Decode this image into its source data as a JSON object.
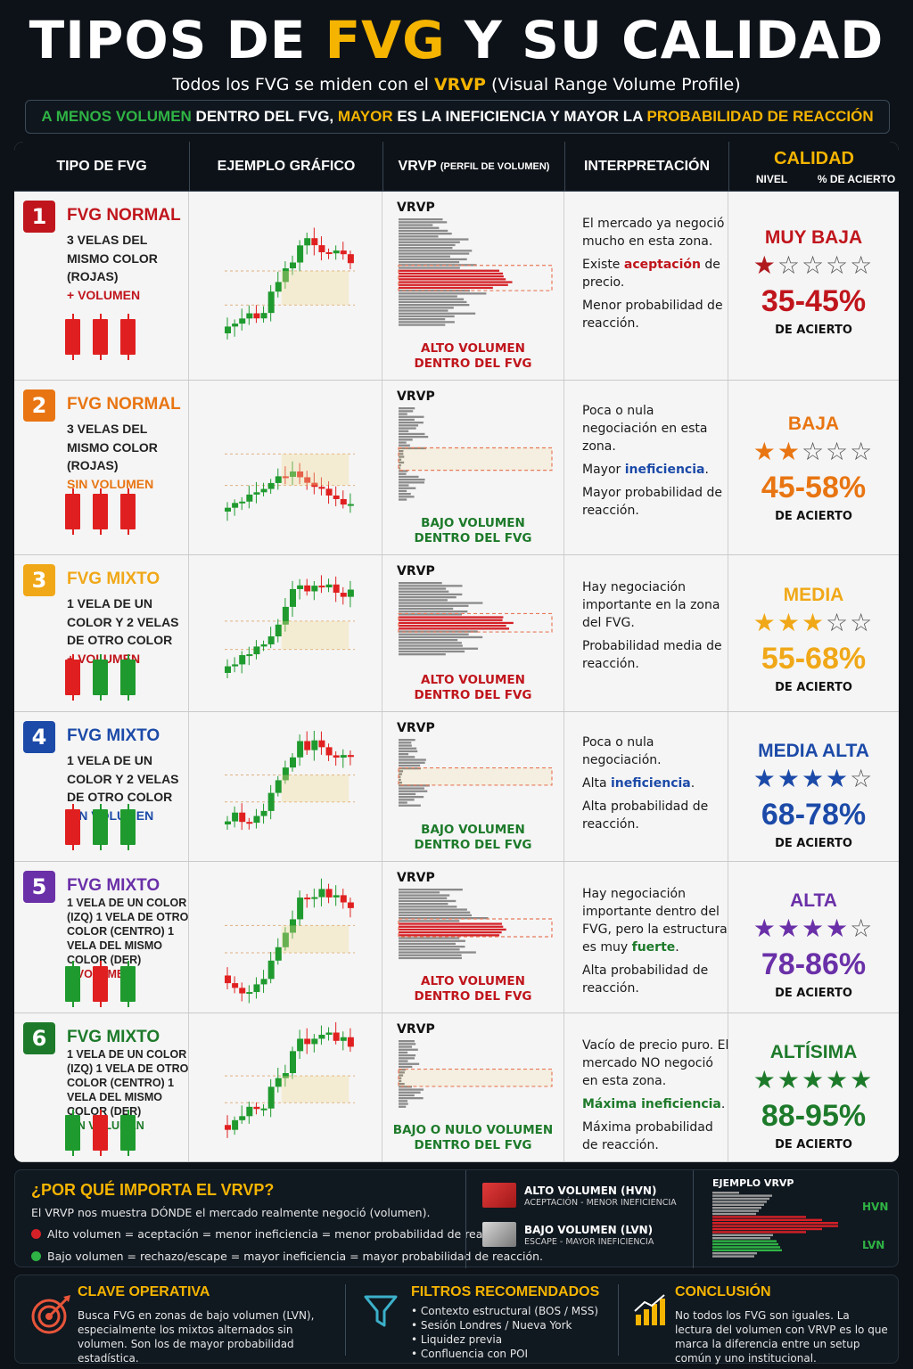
{
  "header": {
    "title_pre": "TIPOS DE ",
    "title_hl": "FVG",
    "title_post": " Y SU CALIDAD",
    "subtitle_pre": "Todos los FVG se miden con el ",
    "subtitle_hl": "VRVP",
    "subtitle_post": " (Visual Range Volume Profile)",
    "banner_1": "A MENOS VOLUMEN",
    "banner_2": " DENTRO DEL FVG, ",
    "banner_3": "MAYOR",
    "banner_4": " ES LA INEFICIENCIA Y MAYOR LA ",
    "banner_5": "PROBABILIDAD DE REACCIÓN"
  },
  "columns": {
    "type": "TIPO DE FVG",
    "example": "EJEMPLO GRÁFICO",
    "vrvp": "VRVP",
    "vrvp_small": "(PERFIL DE VOLUMEN)",
    "interp": "INTERPRETACIÓN",
    "quality": "CALIDAD",
    "level": "NIVEL",
    "pct": "% DE ACIERTO"
  },
  "vrvp_label": "VRVP",
  "accuracy_label": "DE ACIERTO",
  "rows": [
    {
      "num": "1",
      "color": "#c0151c",
      "name": "FVG NORMAL",
      "desc": "3 VELAS DEL MISMO COLOR (ROJAS)",
      "note": "+ VOLUMEN",
      "note_color": "#c0151c",
      "candles": [
        "red",
        "red",
        "red"
      ],
      "vol1": "ALTO VOLUMEN",
      "vol2": "DENTRO DEL FVG",
      "vol_color": "#c0151c",
      "high": true,
      "interp": [
        "El mercado ya negoció mucho en esta zona.",
        "Existe ",
        "aceptación",
        " de precio.",
        "Menor probabilidad de reacción."
      ],
      "level": "MUY BAJA",
      "stars": 1,
      "pct": "35-45%",
      "qcolor": "#c0151c",
      "star_color": "#b01a1f"
    },
    {
      "num": "2",
      "color": "#e87512",
      "name": "FVG NORMAL",
      "desc": "3 VELAS DEL MISMO COLOR (ROJAS)",
      "note": "SIN VOLUMEN",
      "note_color": "#e87512",
      "candles": [
        "red",
        "red",
        "red"
      ],
      "vol1": "BAJO VOLUMEN",
      "vol2": "DENTRO DEL FVG",
      "vol_color": "#1d7a2a",
      "high": false,
      "interp": [
        "Poca o nula negociación en esta zona.",
        "Mayor ",
        "ineficiencia",
        ".",
        "Mayor probabilidad de reacción."
      ],
      "level": "BAJA",
      "stars": 2,
      "pct": "45-58%",
      "qcolor": "#e87512",
      "star_color": "#e87512"
    },
    {
      "num": "3",
      "color": "#f0a818",
      "name": "FVG MIXTO",
      "desc": "1 VELA DE UN COLOR Y 2 VELAS DE OTRO COLOR",
      "note": "+ VOLUMEN",
      "note_color": "#c0151c",
      "candles": [
        "red",
        "green",
        "green"
      ],
      "vol1": "ALTO VOLUMEN",
      "vol2": "DENTRO DEL FVG",
      "vol_color": "#c0151c",
      "high": true,
      "interp": [
        "Hay negociación importante en la zona del FVG.",
        "",
        "",
        "",
        "Probabilidad media de reacción."
      ],
      "level": "MEDIA",
      "stars": 3,
      "pct": "55-68%",
      "qcolor": "#f0a818",
      "star_color": "#f0a818"
    },
    {
      "num": "4",
      "color": "#1c4aa8",
      "name": "FVG MIXTO",
      "desc": "1 VELA DE UN COLOR Y 2 VELAS DE OTRO COLOR",
      "note": "SIN VOLUMEN",
      "note_color": "#1c4aa8",
      "candles": [
        "red",
        "green",
        "green"
      ],
      "vol1": "BAJO VOLUMEN",
      "vol2": "DENTRO DEL FVG",
      "vol_color": "#1d7a2a",
      "high": false,
      "interp": [
        "Poca o nula negociación.",
        "Alta ",
        "ineficiencia",
        ".",
        "Alta probabilidad de reacción."
      ],
      "level": "MEDIA ALTA",
      "stars": 4,
      "pct": "68-78%",
      "qcolor": "#1c4aa8",
      "star_color": "#1c4aa8"
    },
    {
      "num": "5",
      "color": "#6a30a8",
      "name": "FVG MIXTO",
      "desc": "1 VELA DE UN COLOR (IZQ) 1 VELA DE OTRO COLOR (CENTRO) 1 VELA DEL MISMO COLOR (DER)",
      "note": "+ VOLUMEN",
      "note_color": "#c0151c",
      "candles": [
        "green",
        "red",
        "green"
      ],
      "vol1": "ALTO VOLUMEN",
      "vol2": "DENTRO DEL FVG",
      "vol_color": "#c0151c",
      "high": true,
      "interp": [
        "Hay negociación importante dentro del FVG, pero la estructura es muy ",
        "fuerte",
        ".",
        "",
        "Alta probabilidad de reacción."
      ],
      "level": "ALTA",
      "stars": 4,
      "pct": "78-86%",
      "qcolor": "#6a30a8",
      "star_color": "#6a30a8"
    },
    {
      "num": "6",
      "color": "#1d7a2a",
      "name": "FVG MIXTO",
      "desc": "1 VELA DE UN COLOR (IZQ) 1 VELA DE OTRO COLOR (CENTRO) 1 VELA DEL MISMO COLOR (DER)",
      "note": "SIN VOLUMEN",
      "note_color": "#1d7a2a",
      "candles": [
        "green",
        "red",
        "green"
      ],
      "vol1": "BAJO O NULO VOLUMEN",
      "vol2": "DENTRO DEL FVG",
      "vol_color": "#1d7a2a",
      "high": false,
      "interp": [
        "Vacío de precio puro. El mercado NO negoció en esta zona.",
        "",
        "Máxima ineficiencia",
        ".",
        "Máxima probabilidad de reacción."
      ],
      "level": "ALTÍSIMA",
      "stars": 5,
      "pct": "88-95%",
      "qcolor": "#1d7a2a",
      "star_color": "#1d7a2a"
    }
  ],
  "why": {
    "title": "¿POR QUÉ IMPORTA EL VRVP?",
    "desc": "El VRVP nos muestra DÓNDE el mercado realmente negoció (volumen).",
    "line1": "Alto volumen = aceptación = menor ineficiencia = menor probabilidad de reacción.",
    "line2": "Bajo volumen = rechazo/escape = mayor ineficiencia = mayor probabilidad de reacción.",
    "hvn_title": "ALTO VOLUMEN (HVN)",
    "hvn_sub": "ACEPTACIÓN - MENOR INEFICIENCIA",
    "lvn_title": "BAJO VOLUMEN (LVN)",
    "lvn_sub": "ESCAPE - MAYOR INEFICIENCIA",
    "example_title": "EJEMPLO VRVP",
    "hvn": "HVN",
    "lvn": "LVN"
  },
  "footer": {
    "key_title": "CLAVE OPERATIVA",
    "key_text": "Busca FVG en zonas de bajo volumen (LVN), especialmente los mixtos alternados sin volumen. Son los de mayor probabilidad estadística.",
    "filters_title": "FILTROS RECOMENDADOS",
    "filters": [
      "Contexto estructural (BOS / MSS)",
      "Sesión Londres / Nueva York",
      "Liquidez previa",
      "Confluencia con POI"
    ],
    "concl_title": "CONCLUSIÓN",
    "concl_text": "No todos los FVG son iguales. La lectura del volumen con VRVP es lo que marca la diferencia entre un setup común y uno institucional."
  },
  "colors": {
    "accent": "#f5b400",
    "green": "#2fb344",
    "red": "#d42127",
    "grey": "#8a8a8a"
  }
}
